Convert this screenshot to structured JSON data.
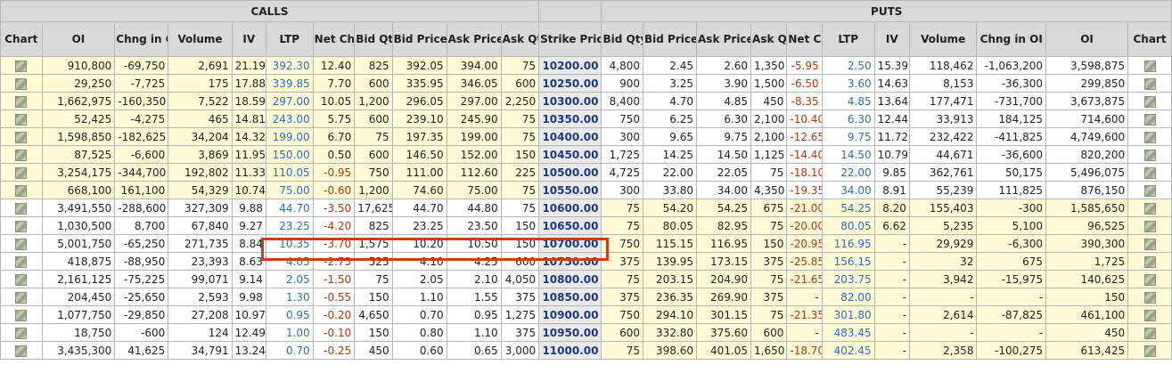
{
  "sections": {
    "calls": "CALLS",
    "puts": "PUTS"
  },
  "headers": {
    "chart": "Chart",
    "oi": "OI",
    "chng_in_oi": "Chng in OI",
    "volume": "Volume",
    "iv": "IV",
    "ltp": "LTP",
    "net_chng": "Net Chng",
    "bid_qty": "Bid Qty",
    "bid_price": "Bid Price",
    "ask_price": "Ask Price",
    "ask_qty": "Ask Qty",
    "strike_price": "Strike Price"
  },
  "colors": {
    "itm_bg": "#fffbd6",
    "otm_bg": "#ffffff",
    "ltp": "#2a6fc0",
    "negative": "#b8360c",
    "strike": "#1a3a87",
    "highlight": "#c93e12"
  },
  "highlighted_strike": "10700.00",
  "rows": [
    {
      "calls": {
        "oi": "910,800",
        "chng_oi": "-69,750",
        "volume": "2,691",
        "iv": "21.19",
        "ltp": "392.30",
        "net": "12.40",
        "bid_qty": "825",
        "bid_price": "392.05",
        "ask_price": "394.00",
        "ask_qty": "75"
      },
      "strike": "10200.00",
      "puts": {
        "bid_qty": "4,800",
        "bid_price": "2.45",
        "ask_price": "2.60",
        "ask_qty": "1,350",
        "net": "-5.95",
        "ltp": "2.50",
        "iv": "15.39",
        "volume": "118,462",
        "chng_oi": "-1,063,200",
        "oi": "3,598,875"
      }
    },
    {
      "calls": {
        "oi": "29,250",
        "chng_oi": "-7,725",
        "volume": "175",
        "iv": "17.88",
        "ltp": "339.85",
        "net": "7.70",
        "bid_qty": "600",
        "bid_price": "335.95",
        "ask_price": "346.05",
        "ask_qty": "600"
      },
      "strike": "10250.00",
      "puts": {
        "bid_qty": "900",
        "bid_price": "3.25",
        "ask_price": "3.90",
        "ask_qty": "1,500",
        "net": "-6.50",
        "ltp": "3.60",
        "iv": "14.63",
        "volume": "8,153",
        "chng_oi": "-36,300",
        "oi": "299,850"
      }
    },
    {
      "calls": {
        "oi": "1,662,975",
        "chng_oi": "-160,350",
        "volume": "7,522",
        "iv": "18.59",
        "ltp": "297.00",
        "net": "10.05",
        "bid_qty": "1,200",
        "bid_price": "296.05",
        "ask_price": "297.00",
        "ask_qty": "2,250"
      },
      "strike": "10300.00",
      "puts": {
        "bid_qty": "8,400",
        "bid_price": "4.70",
        "ask_price": "4.85",
        "ask_qty": "450",
        "net": "-8.35",
        "ltp": "4.85",
        "iv": "13.64",
        "volume": "177,471",
        "chng_oi": "-731,700",
        "oi": "3,673,875"
      }
    },
    {
      "calls": {
        "oi": "52,425",
        "chng_oi": "-4,275",
        "volume": "465",
        "iv": "14.81",
        "ltp": "243.00",
        "net": "5.75",
        "bid_qty": "600",
        "bid_price": "239.10",
        "ask_price": "245.90",
        "ask_qty": "75"
      },
      "strike": "10350.00",
      "puts": {
        "bid_qty": "750",
        "bid_price": "6.25",
        "ask_price": "6.30",
        "ask_qty": "2,100",
        "net": "-10.40",
        "ltp": "6.30",
        "iv": "12.44",
        "volume": "33,913",
        "chng_oi": "184,125",
        "oi": "714,600"
      }
    },
    {
      "calls": {
        "oi": "1,598,850",
        "chng_oi": "-182,625",
        "volume": "34,204",
        "iv": "14.32",
        "ltp": "199.00",
        "net": "6.70",
        "bid_qty": "75",
        "bid_price": "197.35",
        "ask_price": "199.00",
        "ask_qty": "75"
      },
      "strike": "10400.00",
      "puts": {
        "bid_qty": "300",
        "bid_price": "9.65",
        "ask_price": "9.75",
        "ask_qty": "2,100",
        "net": "-12.65",
        "ltp": "9.75",
        "iv": "11.72",
        "volume": "232,422",
        "chng_oi": "-411,825",
        "oi": "4,749,600"
      }
    },
    {
      "calls": {
        "oi": "87,525",
        "chng_oi": "-6,600",
        "volume": "3,869",
        "iv": "11.95",
        "ltp": "150.00",
        "net": "0.50",
        "bid_qty": "600",
        "bid_price": "146.50",
        "ask_price": "152.00",
        "ask_qty": "150"
      },
      "strike": "10450.00",
      "puts": {
        "bid_qty": "1,725",
        "bid_price": "14.25",
        "ask_price": "14.50",
        "ask_qty": "1,125",
        "net": "-14.40",
        "ltp": "14.50",
        "iv": "10.79",
        "volume": "44,671",
        "chng_oi": "-36,600",
        "oi": "820,200"
      }
    },
    {
      "calls": {
        "oi": "3,254,175",
        "chng_oi": "-344,700",
        "volume": "192,802",
        "iv": "11.33",
        "ltp": "110.05",
        "net": "-0.95",
        "bid_qty": "750",
        "bid_price": "111.00",
        "ask_price": "112.60",
        "ask_qty": "225"
      },
      "strike": "10500.00",
      "puts": {
        "bid_qty": "4,725",
        "bid_price": "22.00",
        "ask_price": "22.05",
        "ask_qty": "75",
        "net": "-18.10",
        "ltp": "22.00",
        "iv": "9.85",
        "volume": "362,761",
        "chng_oi": "50,175",
        "oi": "5,496,075"
      }
    },
    {
      "calls": {
        "oi": "668,100",
        "chng_oi": "161,100",
        "volume": "54,329",
        "iv": "10.74",
        "ltp": "75.00",
        "net": "-0.60",
        "bid_qty": "1,200",
        "bid_price": "74.60",
        "ask_price": "75.00",
        "ask_qty": "75"
      },
      "strike": "10550.00",
      "puts": {
        "bid_qty": "300",
        "bid_price": "33.80",
        "ask_price": "34.00",
        "ask_qty": "4,350",
        "net": "-19.35",
        "ltp": "34.00",
        "iv": "8.91",
        "volume": "55,239",
        "chng_oi": "111,825",
        "oi": "876,150"
      }
    },
    {
      "calls": {
        "oi": "3,491,550",
        "chng_oi": "-288,600",
        "volume": "327,309",
        "iv": "9.88",
        "ltp": "44.70",
        "net": "-3.50",
        "bid_qty": "17,625",
        "bid_price": "44.70",
        "ask_price": "44.80",
        "ask_qty": "75"
      },
      "strike": "10600.00",
      "puts": {
        "bid_qty": "75",
        "bid_price": "54.20",
        "ask_price": "54.25",
        "ask_qty": "675",
        "net": "-21.00",
        "ltp": "54.25",
        "iv": "8.20",
        "volume": "155,403",
        "chng_oi": "-300",
        "oi": "1,585,650"
      }
    },
    {
      "calls": {
        "oi": "1,030,500",
        "chng_oi": "8,700",
        "volume": "67,840",
        "iv": "9.27",
        "ltp": "23.25",
        "net": "-4.20",
        "bid_qty": "825",
        "bid_price": "23.25",
        "ask_price": "23.50",
        "ask_qty": "150"
      },
      "strike": "10650.00",
      "puts": {
        "bid_qty": "75",
        "bid_price": "80.05",
        "ask_price": "82.95",
        "ask_qty": "75",
        "net": "-20.00",
        "ltp": "80.05",
        "iv": "6.62",
        "volume": "5,235",
        "chng_oi": "5,100",
        "oi": "96,525"
      }
    },
    {
      "calls": {
        "oi": "5,001,750",
        "chng_oi": "-65,250",
        "volume": "271,735",
        "iv": "8.84",
        "ltp": "10.35",
        "net": "-3.70",
        "bid_qty": "1,575",
        "bid_price": "10.20",
        "ask_price": "10.50",
        "ask_qty": "150"
      },
      "strike": "10700.00",
      "puts": {
        "bid_qty": "750",
        "bid_price": "115.15",
        "ask_price": "116.95",
        "ask_qty": "150",
        "net": "-20.95",
        "ltp": "116.95",
        "iv": "-",
        "volume": "29,929",
        "chng_oi": "-6,300",
        "oi": "390,300"
      }
    },
    {
      "calls": {
        "oi": "418,875",
        "chng_oi": "-88,950",
        "volume": "23,393",
        "iv": "8.63",
        "ltp": "4.05",
        "net": "-2.75",
        "bid_qty": "525",
        "bid_price": "4.10",
        "ask_price": "4.25",
        "ask_qty": "600"
      },
      "strike": "10750.00",
      "puts": {
        "bid_qty": "375",
        "bid_price": "139.95",
        "ask_price": "173.15",
        "ask_qty": "375",
        "net": "-25.85",
        "ltp": "156.15",
        "iv": "-",
        "volume": "32",
        "chng_oi": "675",
        "oi": "1,725"
      }
    },
    {
      "calls": {
        "oi": "2,161,125",
        "chng_oi": "-75,225",
        "volume": "99,071",
        "iv": "9.14",
        "ltp": "2.05",
        "net": "-1.50",
        "bid_qty": "75",
        "bid_price": "2.05",
        "ask_price": "2.10",
        "ask_qty": "4,050"
      },
      "strike": "10800.00",
      "puts": {
        "bid_qty": "75",
        "bid_price": "203.15",
        "ask_price": "204.90",
        "ask_qty": "75",
        "net": "-21.65",
        "ltp": "203.75",
        "iv": "-",
        "volume": "3,942",
        "chng_oi": "-15,975",
        "oi": "140,625"
      }
    },
    {
      "calls": {
        "oi": "204,450",
        "chng_oi": "-25,650",
        "volume": "2,593",
        "iv": "9.98",
        "ltp": "1.30",
        "net": "-0.55",
        "bid_qty": "150",
        "bid_price": "1.10",
        "ask_price": "1.55",
        "ask_qty": "375"
      },
      "strike": "10850.00",
      "puts": {
        "bid_qty": "375",
        "bid_price": "236.35",
        "ask_price": "269.90",
        "ask_qty": "375",
        "net": "-",
        "ltp": "82.00",
        "iv": "-",
        "volume": "-",
        "chng_oi": "-",
        "oi": "150"
      }
    },
    {
      "calls": {
        "oi": "1,077,750",
        "chng_oi": "-29,850",
        "volume": "27,208",
        "iv": "10.97",
        "ltp": "0.95",
        "net": "-0.20",
        "bid_qty": "4,650",
        "bid_price": "0.70",
        "ask_price": "0.95",
        "ask_qty": "1,275"
      },
      "strike": "10900.00",
      "puts": {
        "bid_qty": "750",
        "bid_price": "294.10",
        "ask_price": "301.15",
        "ask_qty": "75",
        "net": "-21.35",
        "ltp": "301.80",
        "iv": "-",
        "volume": "2,614",
        "chng_oi": "-87,825",
        "oi": "461,100"
      }
    },
    {
      "calls": {
        "oi": "18,750",
        "chng_oi": "-600",
        "volume": "124",
        "iv": "12.49",
        "ltp": "1.00",
        "net": "-0.10",
        "bid_qty": "150",
        "bid_price": "0.80",
        "ask_price": "1.10",
        "ask_qty": "375"
      },
      "strike": "10950.00",
      "puts": {
        "bid_qty": "600",
        "bid_price": "332.80",
        "ask_price": "375.60",
        "ask_qty": "600",
        "net": "-",
        "ltp": "483.45",
        "iv": "-",
        "volume": "-",
        "chng_oi": "-",
        "oi": "450"
      }
    },
    {
      "calls": {
        "oi": "3,435,300",
        "chng_oi": "41,625",
        "volume": "34,791",
        "iv": "13.24",
        "ltp": "0.70",
        "net": "-0.25",
        "bid_qty": "450",
        "bid_price": "0.60",
        "ask_price": "0.65",
        "ask_qty": "3,000"
      },
      "strike": "11000.00",
      "puts": {
        "bid_qty": "75",
        "bid_price": "398.60",
        "ask_price": "401.05",
        "ask_qty": "1,650",
        "net": "-18.70",
        "ltp": "402.45",
        "iv": "-",
        "volume": "2,358",
        "chng_oi": "-100,275",
        "oi": "613,425"
      }
    }
  ]
}
